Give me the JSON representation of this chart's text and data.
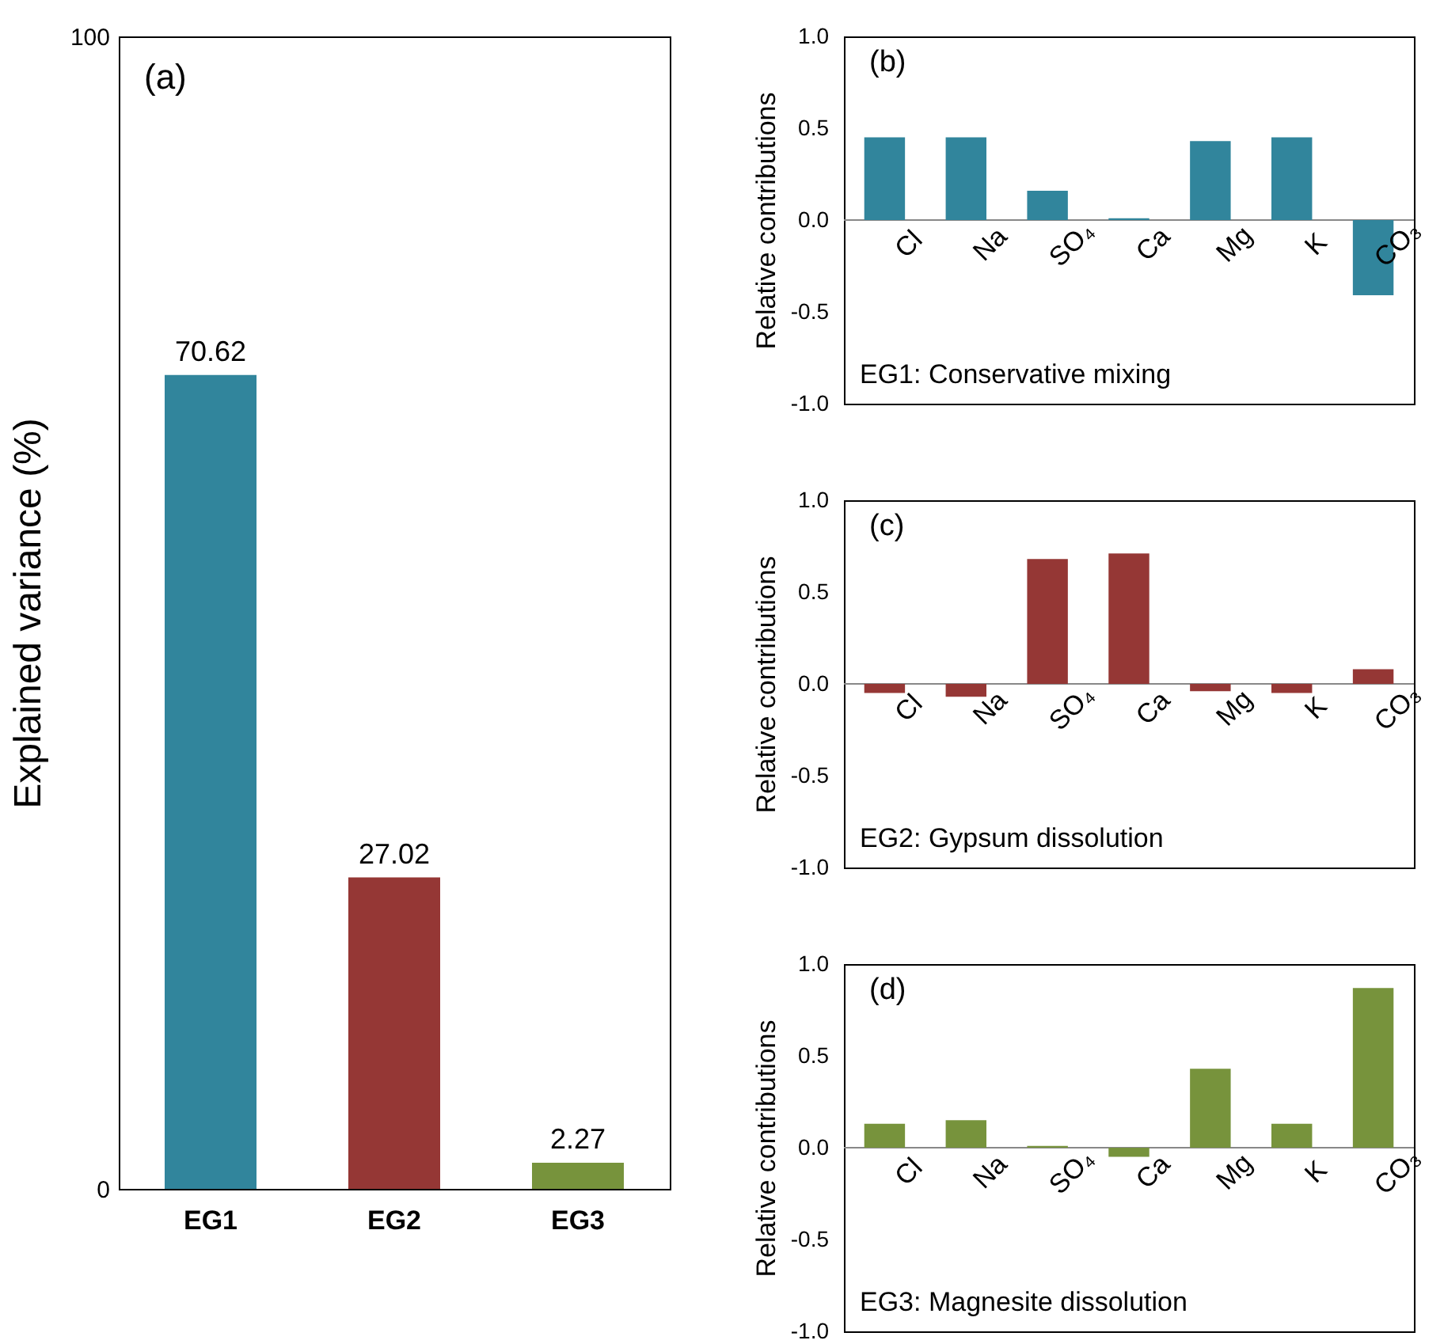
{
  "chart_data": [
    {
      "type": "bar",
      "categories": [
        "EG1",
        "EG2",
        "EG3"
      ],
      "values": [
        70.62,
        27.02,
        2.27
      ],
      "colors": [
        "#31859c",
        "#953735",
        "#77933c"
      ],
      "ylabel": "Explained variance (%)",
      "ylim": [
        0,
        100
      ],
      "yticks": [
        0,
        100
      ],
      "data_labels": true,
      "grid": false,
      "annotations": [
        "(a)"
      ]
    },
    {
      "type": "bar",
      "categories": [
        "Cl",
        "Na",
        "SO₄",
        "Ca",
        "Mg",
        "K",
        "CO₃"
      ],
      "values": [
        0.45,
        0.45,
        0.16,
        0.01,
        0.43,
        0.45,
        -0.41
      ],
      "color": "#31859c",
      "ylabel": "Relative contributions",
      "ylim": [
        -1,
        1
      ],
      "yticks": [
        {
          "value": -1,
          "label": "-1.0"
        },
        {
          "value": -0.5,
          "label": "-0.5"
        },
        {
          "value": 0,
          "label": "0.0"
        },
        {
          "value": 0.5,
          "label": "0.5"
        },
        {
          "value": 1,
          "label": "1.0"
        }
      ],
      "grid": false,
      "annotations": [
        "(b)",
        "EG1: Conservative mixing"
      ]
    },
    {
      "type": "bar",
      "categories": [
        "Cl",
        "Na",
        "SO₄",
        "Ca",
        "Mg",
        "K",
        "CO₃"
      ],
      "values": [
        -0.05,
        -0.07,
        0.68,
        0.71,
        -0.04,
        -0.05,
        0.08
      ],
      "color": "#953735",
      "ylabel": "Relative contributions",
      "ylim": [
        -1,
        1
      ],
      "yticks": [
        {
          "value": -1,
          "label": "-1.0"
        },
        {
          "value": -0.5,
          "label": "-0.5"
        },
        {
          "value": 0,
          "label": "0.0"
        },
        {
          "value": 0.5,
          "label": "0.5"
        },
        {
          "value": 1,
          "label": "1.0"
        }
      ],
      "grid": false,
      "annotations": [
        "(c)",
        "EG2: Gypsum dissolution"
      ]
    },
    {
      "type": "bar",
      "categories": [
        "Cl",
        "Na",
        "SO₄",
        "Ca",
        "Mg",
        "K",
        "CO₃"
      ],
      "values": [
        0.13,
        0.15,
        0.01,
        -0.05,
        0.43,
        0.13,
        0.87
      ],
      "color": "#77933c",
      "ylabel": "Relative contributions",
      "ylim": [
        -1,
        1
      ],
      "yticks": [
        {
          "value": -1,
          "label": "-1.0"
        },
        {
          "value": -0.5,
          "label": "-0.5"
        },
        {
          "value": 0,
          "label": "0.0"
        },
        {
          "value": 0.5,
          "label": "0.5"
        },
        {
          "value": 1,
          "label": "1.0"
        }
      ],
      "grid": false,
      "annotations": [
        "(d)",
        "EG3: Magnesite dissolution"
      ]
    }
  ]
}
